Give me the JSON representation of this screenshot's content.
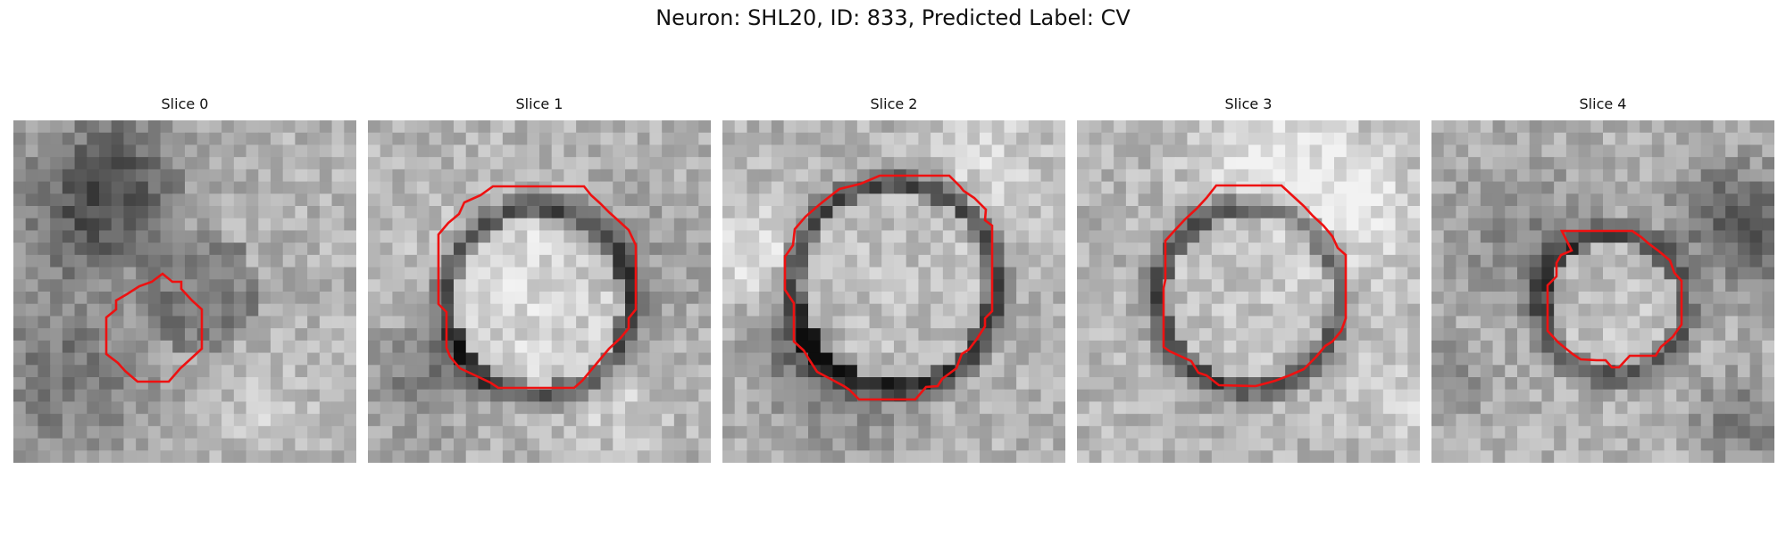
{
  "figure": {
    "title": "Neuron: SHL20, ID: 833, Predicted Label: CV",
    "contour_color": "#ee1111",
    "panels": [
      {
        "title": "Slice 0",
        "seed": 11,
        "ring": 0.0,
        "innerTone": 0.4
      },
      {
        "title": "Slice 1",
        "seed": 23,
        "ring": 0.95,
        "innerTone": 0.86
      },
      {
        "title": "Slice 2",
        "seed": 37,
        "ring": 1.0,
        "innerTone": 0.78
      },
      {
        "title": "Slice 3",
        "seed": 51,
        "ring": 0.9,
        "innerTone": 0.8
      },
      {
        "title": "Slice 4",
        "seed": 67,
        "ring": 0.8,
        "innerTone": 0.8
      }
    ]
  }
}
